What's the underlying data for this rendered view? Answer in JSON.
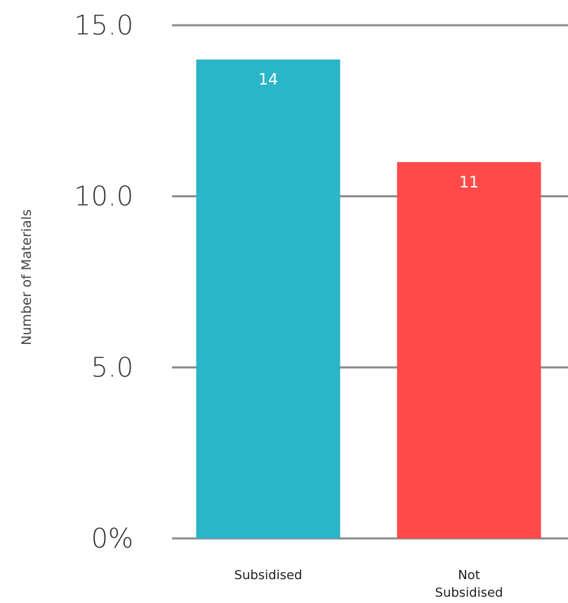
{
  "chart_data": {
    "type": "bar",
    "title": "",
    "xlabel": "",
    "ylabel": "Number of Materials",
    "categories": [
      [
        "Subsidised"
      ],
      [
        "Not",
        "Subsidised"
      ]
    ],
    "values": [
      14,
      11
    ],
    "data_labels": [
      "14",
      "11"
    ],
    "colors": [
      "#2AB5C8",
      "#FF4A4A"
    ],
    "ylim": [
      0,
      15
    ],
    "yticks": [
      0,
      5,
      10,
      15
    ],
    "ytick_labels": [
      "0%",
      "5.0",
      "10.0",
      "15.0"
    ],
    "grid": true,
    "legend": "none"
  }
}
